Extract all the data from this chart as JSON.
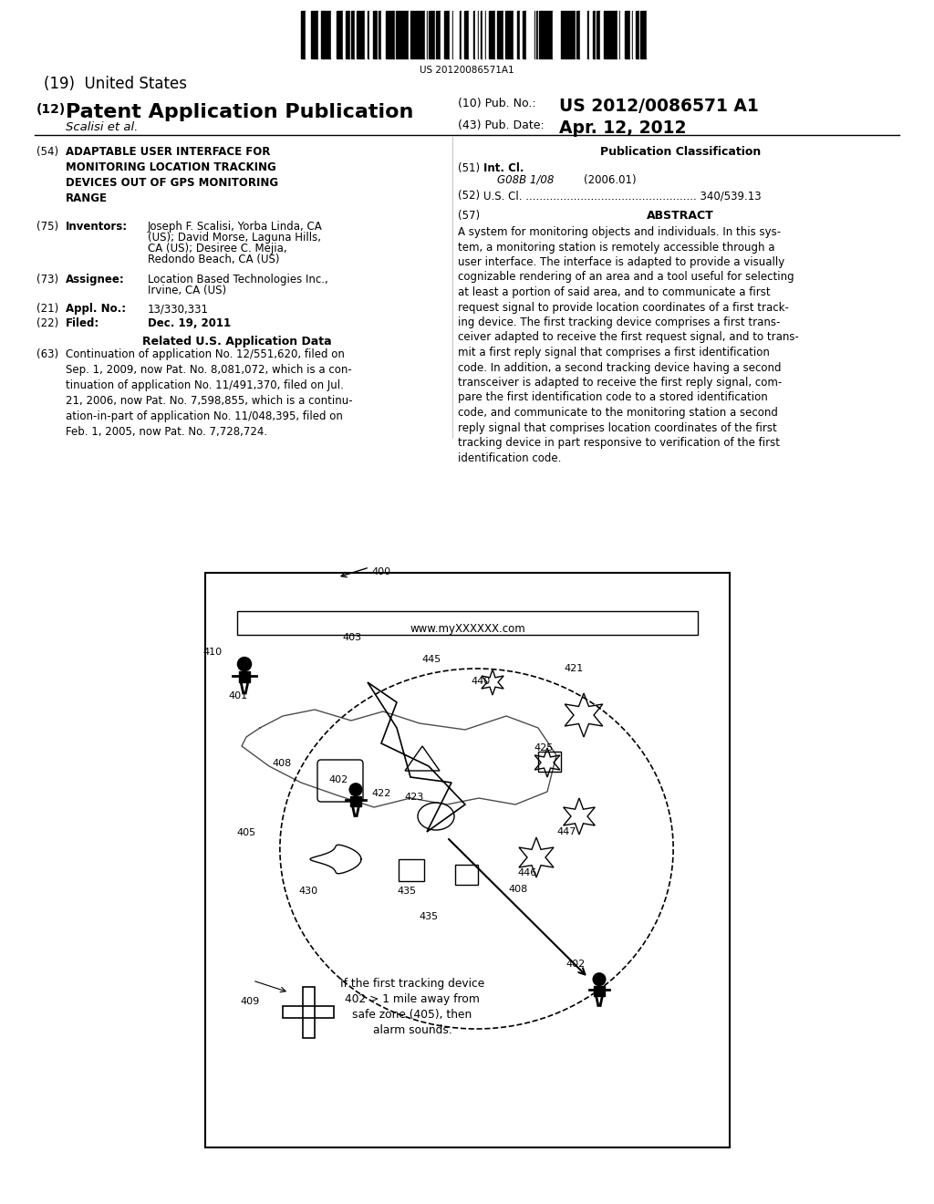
{
  "background_color": "#ffffff",
  "barcode_text": "US 20120086571A1",
  "title_19": "(19)  United States",
  "title_12_prefix": "(12)",
  "title_12_main": "Patent Application Publication",
  "pub_no_label": "(10) Pub. No.:",
  "pub_no": "US 2012/0086571 A1",
  "author_left": "Scalisi et al.",
  "pub_date_label": "(43) Pub. Date:",
  "pub_date": "Apr. 12, 2012",
  "field_54_label": "(54)",
  "field_54_title": "ADAPTABLE USER INTERFACE FOR\nMONITORING LOCATION TRACKING\nDEVICES OUT OF GPS MONITORING\nRANGE",
  "pub_class_label": "Publication Classification",
  "field_51_label": "(51)",
  "field_51_title": "Int. Cl.",
  "field_51_code": "G08B 1/08",
  "field_51_year": "(2006.01)",
  "field_52_label": "(52)",
  "field_52_text": "U.S. Cl. .................................................. 340/539.13",
  "field_75_label": "(75)",
  "field_75_title": "Inventors:",
  "field_75_inventors": "Joseph F. Scalisi, Yorba Linda, CA\n(US); David Morse, Laguna Hills,\nCA (US); Desiree C. Mejia,\nRedondo Beach, CA (US)",
  "field_57_label": "(57)",
  "abstract_title": "ABSTRACT",
  "abstract_text": "A system for monitoring objects and individuals. In this sys-\ntem, a monitoring station is remotely accessible through a\nuser interface. The interface is adapted to provide a visually\ncognizable rendering of an area and a tool useful for selecting\nat least a portion of said area, and to communicate a first\nrequest signal to provide location coordinates of a first track-\ning device. The first tracking device comprises a first trans-\nceiver adapted to receive the first request signal, and to trans-\nmit a first reply signal that comprises a first identification\ncode. In addition, a second tracking device having a second\ntransceiver is adapted to receive the first reply signal, com-\npare the first identification code to a stored identification\ncode, and communicate to the monitoring station a second\nreply signal that comprises location coordinates of the first\ntracking device in part responsive to verification of the first\nidentification code.",
  "field_73_label": "(73)",
  "field_73_title": "Assignee:",
  "field_73_text": "Location Based Technologies Inc.,\nIrvine, CA (US)",
  "field_21_label": "(21)",
  "field_21_title": "Appl. No.:",
  "field_21_text": "13/330,331",
  "field_22_label": "(22)",
  "field_22_title": "Filed:",
  "field_22_text": "Dec. 19, 2011",
  "related_title": "Related U.S. Application Data",
  "field_63_label": "(63)",
  "field_63_text": "Continuation of application No. 12/551,620, filed on\nSep. 1, 2009, now Pat. No. 8,081,072, which is a con-\ntinuation of application No. 11/491,370, filed on Jul.\n21, 2006, now Pat. No. 7,598,855, which is a continu-\nation-in-part of application No. 11/048,395, filed on\nFeb. 1, 2005, now Pat. No. 7,728,724.",
  "diagram_url": "www.myXXXXXX.com",
  "alarm_text": "If the first tracking device\n402 > 1 mile away from\nsafe zone (405), then\nalarm sounds.",
  "lbl_400": "400",
  "lbl_403": "403",
  "lbl_401": "401",
  "lbl_410": "410",
  "lbl_408a": "408",
  "lbl_402a": "402",
  "lbl_422": "422",
  "lbl_423": "423",
  "lbl_405": "405",
  "lbl_430": "430",
  "lbl_435a": "435",
  "lbl_408b": "408",
  "lbl_445": "445",
  "lbl_440": "440",
  "lbl_421": "421",
  "lbl_425": "425",
  "lbl_446": "446",
  "lbl_447": "447",
  "lbl_435b": "435",
  "lbl_402b": "402",
  "lbl_409": "409"
}
